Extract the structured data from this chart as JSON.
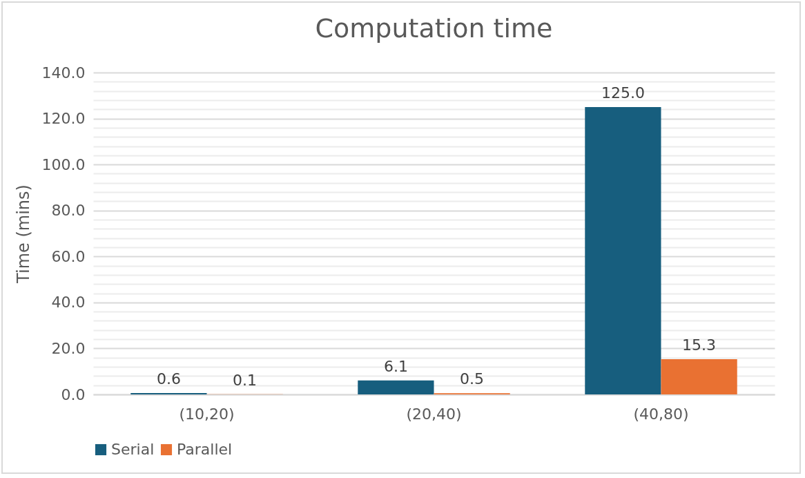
{
  "chart_data": {
    "type": "bar",
    "title": "Computation time",
    "ylabel": "Time (mins)",
    "categories": [
      "(10,20)",
      "(20,40)",
      "(40,80)"
    ],
    "series": [
      {
        "name": "Serial",
        "color": "#175e7e",
        "values": [
          0.6,
          6.1,
          125.0
        ],
        "value_labels": [
          "0.6",
          "6.1",
          "125.0"
        ]
      },
      {
        "name": "Parallel",
        "color": "#e97132",
        "values": [
          0.1,
          0.5,
          15.3
        ],
        "value_labels": [
          "0.1",
          "0.5",
          "15.3"
        ]
      }
    ],
    "ylim": [
      0,
      140
    ],
    "yticks": [
      {
        "value": 0,
        "label": "0.0"
      },
      {
        "value": 4,
        "label": null
      },
      {
        "value": 8,
        "label": null
      },
      {
        "value": 12,
        "label": null
      },
      {
        "value": 16,
        "label": null
      },
      {
        "value": 20,
        "label": "20.0"
      },
      {
        "value": 24,
        "label": null
      },
      {
        "value": 28,
        "label": null
      },
      {
        "value": 32,
        "label": null
      },
      {
        "value": 36,
        "label": null
      },
      {
        "value": 40,
        "label": "40.0"
      },
      {
        "value": 44,
        "label": null
      },
      {
        "value": 48,
        "label": null
      },
      {
        "value": 52,
        "label": null
      },
      {
        "value": 56,
        "label": null
      },
      {
        "value": 60,
        "label": "60.0"
      },
      {
        "value": 64,
        "label": null
      },
      {
        "value": 68,
        "label": null
      },
      {
        "value": 72,
        "label": null
      },
      {
        "value": 76,
        "label": null
      },
      {
        "value": 80,
        "label": "80.0"
      },
      {
        "value": 84,
        "label": null
      },
      {
        "value": 88,
        "label": null
      },
      {
        "value": 92,
        "label": null
      },
      {
        "value": 96,
        "label": null
      },
      {
        "value": 100,
        "label": "100.0"
      },
      {
        "value": 104,
        "label": null
      },
      {
        "value": 108,
        "label": null
      },
      {
        "value": 112,
        "label": null
      },
      {
        "value": 116,
        "label": null
      },
      {
        "value": 120,
        "label": "120.0"
      },
      {
        "value": 124,
        "label": null
      },
      {
        "value": 128,
        "label": null
      },
      {
        "value": 132,
        "label": null
      },
      {
        "value": 136,
        "label": null
      },
      {
        "value": 140,
        "label": "140.0"
      }
    ],
    "grid": true,
    "legend": "bottom"
  }
}
